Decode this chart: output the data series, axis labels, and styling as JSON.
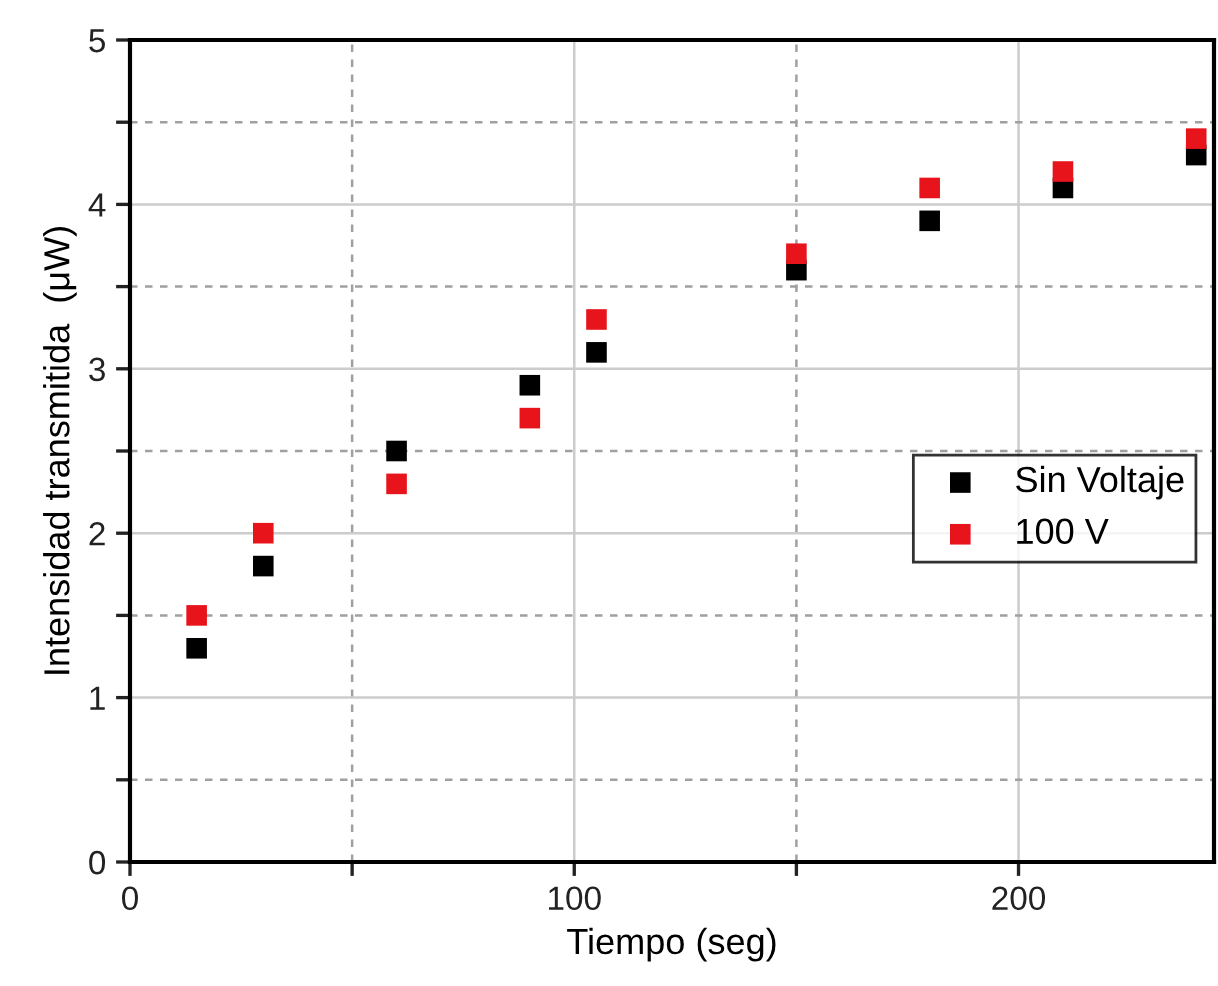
{
  "chart_data": {
    "type": "scatter",
    "xlabel": "Tiempo (seg)",
    "ylabel": "Intensidad transmitida  (μW)",
    "xlim": [
      0,
      244
    ],
    "ylim": [
      0,
      5
    ],
    "xticks": [
      0,
      {
        "value": 50,
        "label": null
      },
      100,
      {
        "value": 150,
        "label": null
      },
      200
    ],
    "yticks": [
      0,
      {
        "value": 0.5,
        "label": null
      },
      1,
      {
        "value": 1.5,
        "label": null
      },
      2,
      {
        "value": 2.5,
        "label": null
      },
      3,
      {
        "value": 3.5,
        "label": null
      },
      4,
      {
        "value": 4.5,
        "label": null
      },
      5
    ],
    "grid": true,
    "legend": "right",
    "marker": "square",
    "x": [
      15,
      30,
      60,
      90,
      105,
      150,
      180,
      210,
      240
    ],
    "series": [
      {
        "name": "Sin Voltaje",
        "color": "#000000",
        "values": [
          1.3,
          1.8,
          2.5,
          2.9,
          3.1,
          3.6,
          3.9,
          4.1,
          4.3
        ]
      },
      {
        "name": "100 V",
        "color": "#e8141c",
        "values": [
          1.5,
          2.0,
          2.3,
          2.7,
          3.3,
          3.7,
          4.1,
          4.2,
          4.4
        ]
      }
    ]
  }
}
